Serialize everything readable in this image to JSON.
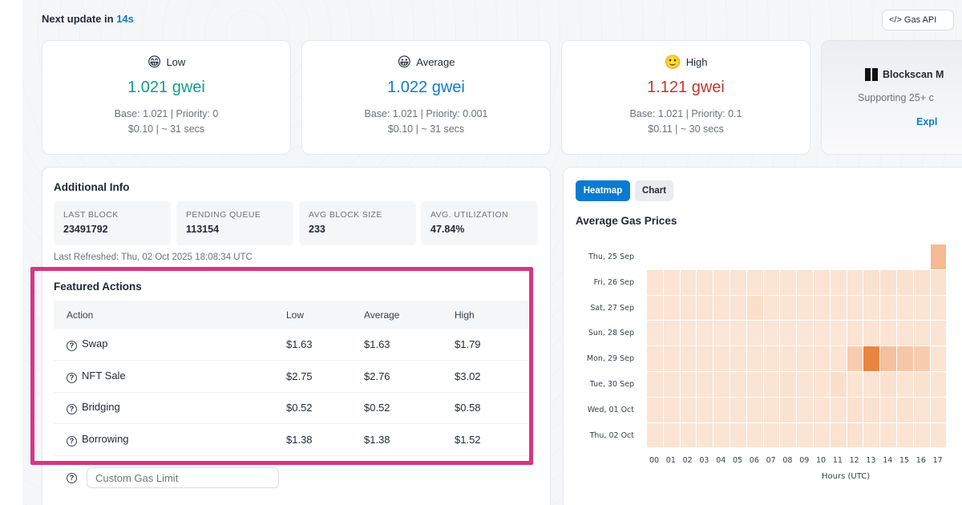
{
  "topbar": {
    "prefix": "Next update in ",
    "seconds": "14s",
    "gas_api_label": "Gas API"
  },
  "tiers": [
    {
      "emoji": "😁",
      "label": "Low",
      "price": "1.021 gwei",
      "base": "Base: 1.021 | Priority: 0",
      "cost": "$0.10 | ~ 31 secs",
      "color": "#0e9f8a"
    },
    {
      "emoji": "😀",
      "label": "Average",
      "price": "1.022 gwei",
      "base": "Base: 1.021 | Priority: 0.001",
      "cost": "$0.10 | ~ 31 secs",
      "color": "#0b7bd1"
    },
    {
      "emoji": "🙂",
      "label": "High",
      "price": "1.121 gwei",
      "base": "Base: 1.021 | Priority: 0.1",
      "cost": "$0.11 | ~ 30 secs",
      "color": "#c2382f"
    }
  ],
  "promo": {
    "title": "Blockscan M",
    "subtitle": "Supporting 25+ c",
    "link": "Expl"
  },
  "additional_info": {
    "title": "Additional Info",
    "stats": [
      {
        "label": "LAST BLOCK",
        "value": "23491792"
      },
      {
        "label": "PENDING QUEUE",
        "value": "113154"
      },
      {
        "label": "AVG BLOCK SIZE",
        "value": "233"
      },
      {
        "label": "AVG. UTILIZATION",
        "value": "47.84%"
      }
    ],
    "refreshed": "Last Refreshed: Thu, 02 Oct 2025 18:08:34 UTC"
  },
  "featured_actions": {
    "title": "Featured Actions",
    "headers": [
      "Action",
      "Low",
      "Average",
      "High"
    ],
    "rows": [
      {
        "action": "Swap",
        "low": "$1.63",
        "average": "$1.63",
        "high": "$1.79"
      },
      {
        "action": "NFT Sale",
        "low": "$2.75",
        "average": "$2.76",
        "high": "$3.02"
      },
      {
        "action": "Bridging",
        "low": "$0.52",
        "average": "$0.52",
        "high": "$0.58"
      },
      {
        "action": "Borrowing",
        "low": "$1.38",
        "average": "$1.38",
        "high": "$1.52"
      }
    ],
    "custom_gas_placeholder": "Custom Gas Limit"
  },
  "heatmap_panel": {
    "tabs": [
      {
        "label": "Heatmap",
        "active": true
      },
      {
        "label": "Chart",
        "active": false
      }
    ],
    "title": "Average Gas Prices"
  },
  "chart_data": {
    "type": "heatmap",
    "title": "Average Gas Prices",
    "xlabel": "Hours (UTC)",
    "ylabel": "",
    "x": [
      "00",
      "01",
      "02",
      "03",
      "04",
      "05",
      "06",
      "07",
      "08",
      "09",
      "10",
      "11",
      "12",
      "13",
      "14",
      "15",
      "16",
      "17"
    ],
    "y": [
      "Thu, 25 Sep",
      "Fri, 26 Sep",
      "Sat, 27 Sep",
      "Sun, 28 Sep",
      "Mon, 29 Sep",
      "Tue, 30 Sep",
      "Wed, 01 Oct",
      "Thu, 02 Oct"
    ],
    "intensity": [
      [
        null,
        null,
        null,
        null,
        null,
        null,
        null,
        null,
        null,
        null,
        null,
        null,
        null,
        null,
        null,
        null,
        null,
        0.45
      ],
      [
        0.1,
        0.1,
        0.1,
        0.1,
        0.1,
        0.1,
        0.1,
        0.1,
        0.1,
        0.1,
        0.1,
        0.1,
        0.1,
        0.12,
        0.12,
        0.12,
        0.12,
        0.12
      ],
      [
        0.1,
        0.1,
        0.1,
        0.1,
        0.1,
        0.1,
        0.14,
        0.1,
        0.1,
        0.1,
        0.1,
        0.1,
        0.1,
        0.1,
        0.1,
        0.1,
        0.1,
        0.1
      ],
      [
        0.09,
        0.09,
        0.09,
        0.09,
        0.09,
        0.09,
        0.09,
        0.09,
        0.09,
        0.09,
        0.09,
        0.09,
        0.1,
        0.1,
        0.1,
        0.1,
        0.1,
        0.1
      ],
      [
        0.1,
        0.1,
        0.1,
        0.1,
        0.1,
        0.1,
        0.1,
        0.1,
        0.1,
        0.1,
        0.1,
        0.1,
        0.3,
        0.9,
        0.4,
        0.35,
        0.3,
        0.1
      ],
      [
        0.1,
        0.1,
        0.1,
        0.1,
        0.1,
        0.1,
        0.1,
        0.1,
        0.12,
        0.1,
        0.1,
        0.14,
        0.1,
        0.1,
        0.12,
        0.1,
        0.12,
        0.1
      ],
      [
        0.1,
        0.1,
        0.1,
        0.1,
        0.1,
        0.1,
        0.1,
        0.1,
        0.12,
        0.1,
        0.1,
        0.1,
        0.12,
        0.12,
        0.1,
        0.12,
        0.1,
        0.1
      ],
      [
        0.1,
        0.1,
        0.1,
        0.1,
        0.1,
        0.1,
        0.1,
        0.1,
        0.1,
        0.1,
        0.1,
        0.12,
        0.12,
        0.1,
        0.1,
        0.1,
        0.1,
        0.1
      ]
    ],
    "color_low": "#fdf0e6",
    "color_high": "#e8782f",
    "grid": true,
    "legend": "none"
  }
}
